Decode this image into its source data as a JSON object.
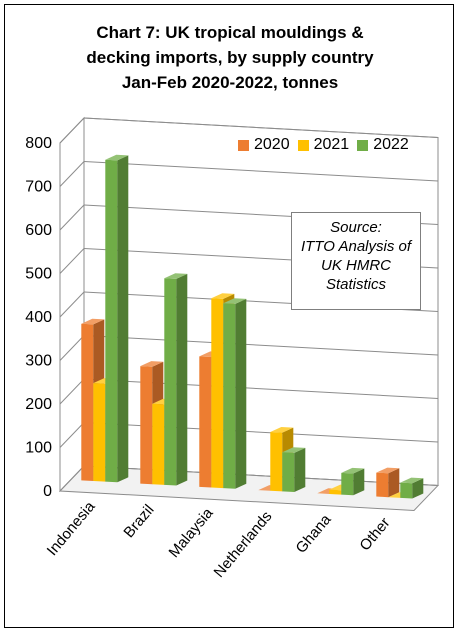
{
  "chart_data": {
    "type": "bar",
    "title_lines": [
      "Chart 7: UK tropical mouldings &",
      "decking imports, by supply country",
      "Jan-Feb 2020-2022, tonnes"
    ],
    "categories": [
      "Indonesia",
      "Brazil",
      "Malaysia",
      "Netherlands",
      "Ghana",
      "Other"
    ],
    "series": [
      {
        "name": "2020",
        "color": "#ed7d31",
        "values": [
          360,
          270,
          300,
          0,
          0,
          55
        ]
      },
      {
        "name": "2021",
        "color": "#ffc000",
        "values": [
          225,
          185,
          435,
          135,
          10,
          0
        ]
      },
      {
        "name": "2022",
        "color": "#70ad47",
        "values": [
          740,
          475,
          425,
          90,
          50,
          35
        ]
      }
    ],
    "ylim": [
      0,
      800
    ],
    "yticks": [
      "0",
      "100",
      "200",
      "300",
      "400",
      "500",
      "600",
      "700",
      "800"
    ],
    "grid": true,
    "legend_position": "top-right",
    "annotation": [
      "Source:",
      "ITTO Analysis of",
      "UK HMRC",
      "Statistics"
    ]
  }
}
